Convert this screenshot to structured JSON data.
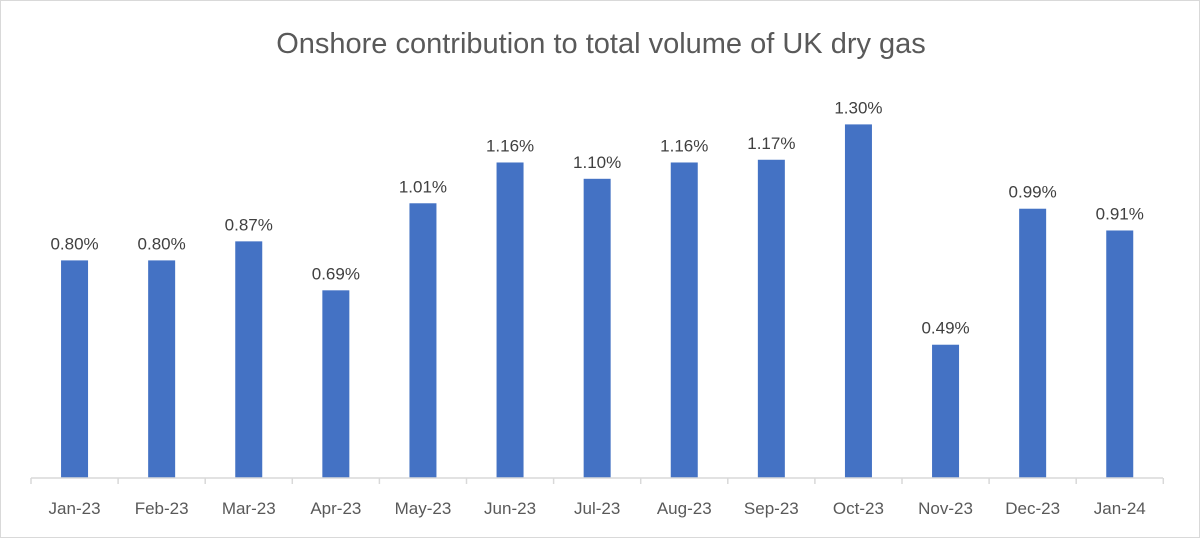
{
  "chart_data": {
    "type": "bar",
    "title": "Onshore contribution to total volume of UK dry gas",
    "xlabel": "",
    "ylabel": "",
    "categories": [
      "Jan-23",
      "Feb-23",
      "Mar-23",
      "Apr-23",
      "May-23",
      "Jun-23",
      "Jul-23",
      "Aug-23",
      "Sep-23",
      "Oct-23",
      "Nov-23",
      "Dec-23",
      "Jan-24"
    ],
    "values": [
      0.8,
      0.8,
      0.87,
      0.69,
      1.01,
      1.16,
      1.1,
      1.16,
      1.17,
      1.3,
      0.49,
      0.99,
      0.91
    ],
    "labels": [
      "0.80%",
      "0.80%",
      "0.87%",
      "0.69%",
      "1.01%",
      "1.16%",
      "1.10%",
      "1.16%",
      "1.17%",
      "1.30%",
      "0.49%",
      "0.99%",
      "0.91%"
    ],
    "unit": "%",
    "ylim": [
      0,
      1.3
    ],
    "grid": false,
    "bar_color": "#4472c4"
  }
}
